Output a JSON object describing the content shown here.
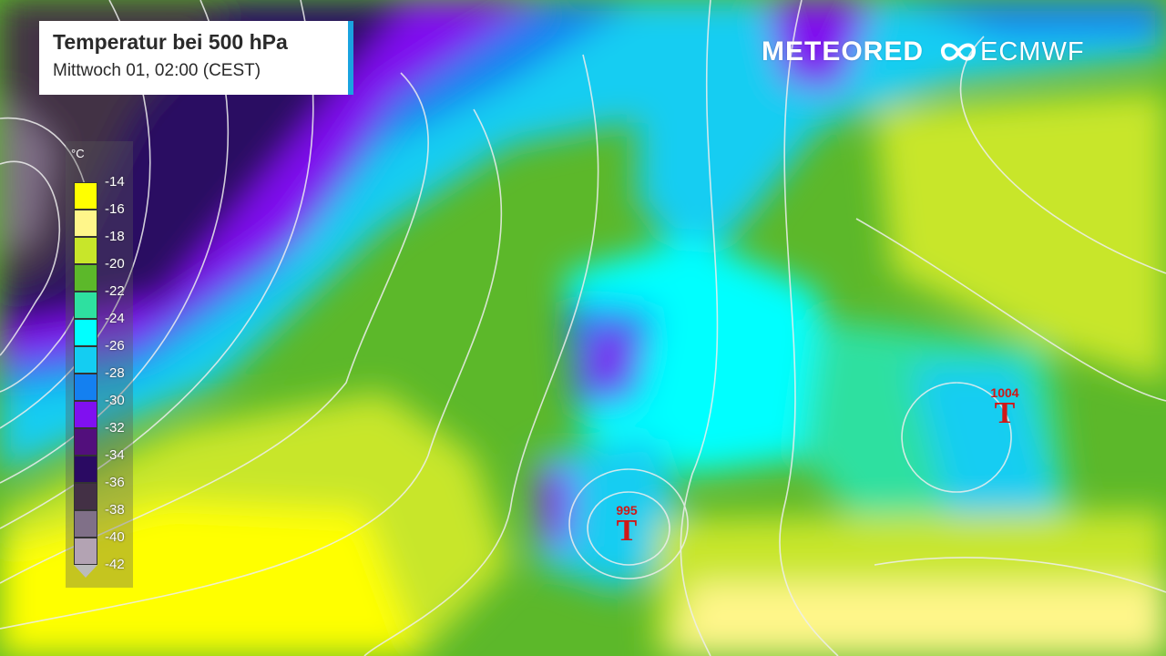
{
  "header": {
    "title": "Temperatur bei 500 hPa",
    "subtitle": "Mittwoch 01, 02:00 (CEST)"
  },
  "legend": {
    "unit": "°C",
    "items": [
      {
        "label": "-14",
        "color": "#ffff00"
      },
      {
        "label": "-16",
        "color": "#fff68a"
      },
      {
        "label": "-18",
        "color": "#c8e62a"
      },
      {
        "label": "-20",
        "color": "#5cb82a"
      },
      {
        "label": "-22",
        "color": "#2ee0a0"
      },
      {
        "label": "-24",
        "color": "#00ffff"
      },
      {
        "label": "-26",
        "color": "#14cdf2"
      },
      {
        "label": "-28",
        "color": "#1480f0"
      },
      {
        "label": "-30",
        "color": "#8010f0"
      },
      {
        "label": "-32",
        "color": "#520f7c"
      },
      {
        "label": "-34",
        "color": "#2a0a62"
      },
      {
        "label": "-36",
        "color": "#433045"
      },
      {
        "label": "-38",
        "color": "#807088"
      },
      {
        "label": "-40",
        "color": "#b3a3b3"
      },
      {
        "label": "-42",
        "color": "#bbbbbb"
      }
    ]
  },
  "logos": {
    "meteored": "METEORED",
    "ecmwf": "ECMWF"
  },
  "lows": [
    {
      "pressure": "995",
      "symbol": "T"
    },
    {
      "pressure": "1004",
      "symbol": "T"
    }
  ]
}
